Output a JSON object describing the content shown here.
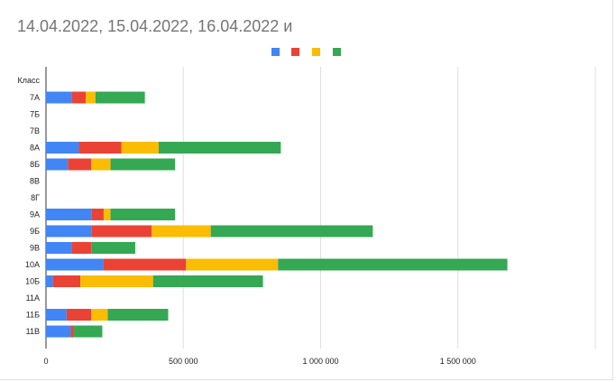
{
  "chart_data": {
    "type": "bar",
    "orientation": "horizontal",
    "stacked": true,
    "title": "14.04.2022, 15.04.2022, 16.04.2022 и",
    "ylabel": "Класс",
    "categories": [
      "7А",
      "7Б",
      "7В",
      "8А",
      "8Б",
      "8В",
      "8Г",
      "9А",
      "9Б",
      "9В",
      "10А",
      "10Б",
      "11А",
      "11Б",
      "11В"
    ],
    "series": [
      {
        "color": "#4285f4",
        "values": [
          95000,
          0,
          0,
          120000,
          80000,
          0,
          0,
          165000,
          165000,
          95000,
          210000,
          25000,
          0,
          75000,
          90000
        ]
      },
      {
        "color": "#ea4335",
        "values": [
          50000,
          0,
          0,
          155000,
          85000,
          0,
          0,
          45000,
          220000,
          70000,
          300000,
          100000,
          0,
          90000,
          10000
        ]
      },
      {
        "color": "#fbbc04",
        "values": [
          35000,
          0,
          0,
          135000,
          70000,
          0,
          0,
          25000,
          215000,
          0,
          335000,
          265000,
          0,
          60000,
          0
        ]
      },
      {
        "color": "#34a853",
        "values": [
          180000,
          0,
          0,
          445000,
          235000,
          0,
          0,
          235000,
          590000,
          160000,
          835000,
          400000,
          0,
          220000,
          105000
        ]
      }
    ],
    "xticks": [
      "0",
      "500 000",
      "1 000 000",
      "1 500 000"
    ],
    "xlim": [
      0,
      2000000
    ],
    "grid": true,
    "legend_position": "top"
  }
}
